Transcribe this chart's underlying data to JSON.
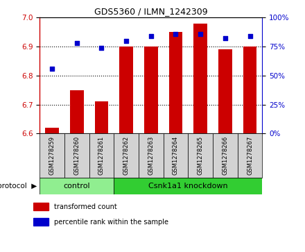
{
  "title": "GDS5360 / ILMN_1242309",
  "samples": [
    "GSM1278259",
    "GSM1278260",
    "GSM1278261",
    "GSM1278262",
    "GSM1278263",
    "GSM1278264",
    "GSM1278265",
    "GSM1278266",
    "GSM1278267"
  ],
  "bar_values": [
    6.62,
    6.75,
    6.71,
    6.9,
    6.9,
    6.95,
    6.98,
    6.89,
    6.9
  ],
  "percentile_values": [
    56,
    78,
    74,
    80,
    84,
    86,
    86,
    82,
    84
  ],
  "ylim_left": [
    6.6,
    7.0
  ],
  "ylim_right": [
    0,
    100
  ],
  "yticks_left": [
    6.6,
    6.7,
    6.8,
    6.9,
    7.0
  ],
  "yticks_right": [
    0,
    25,
    50,
    75,
    100
  ],
  "bar_color": "#CC0000",
  "dot_color": "#0000CC",
  "bar_width": 0.55,
  "protocol_groups": [
    {
      "label": "control",
      "start": 0,
      "end": 3
    },
    {
      "label": "Csnk1a1 knockdown",
      "start": 3,
      "end": 9
    }
  ],
  "protocol_label": "protocol",
  "legend_bar_label": "transformed count",
  "legend_dot_label": "percentile rank within the sample",
  "plot_bg": "#ffffff",
  "control_color": "#90EE90",
  "knockdown_color": "#32CD32",
  "cell_color": "#d3d3d3"
}
